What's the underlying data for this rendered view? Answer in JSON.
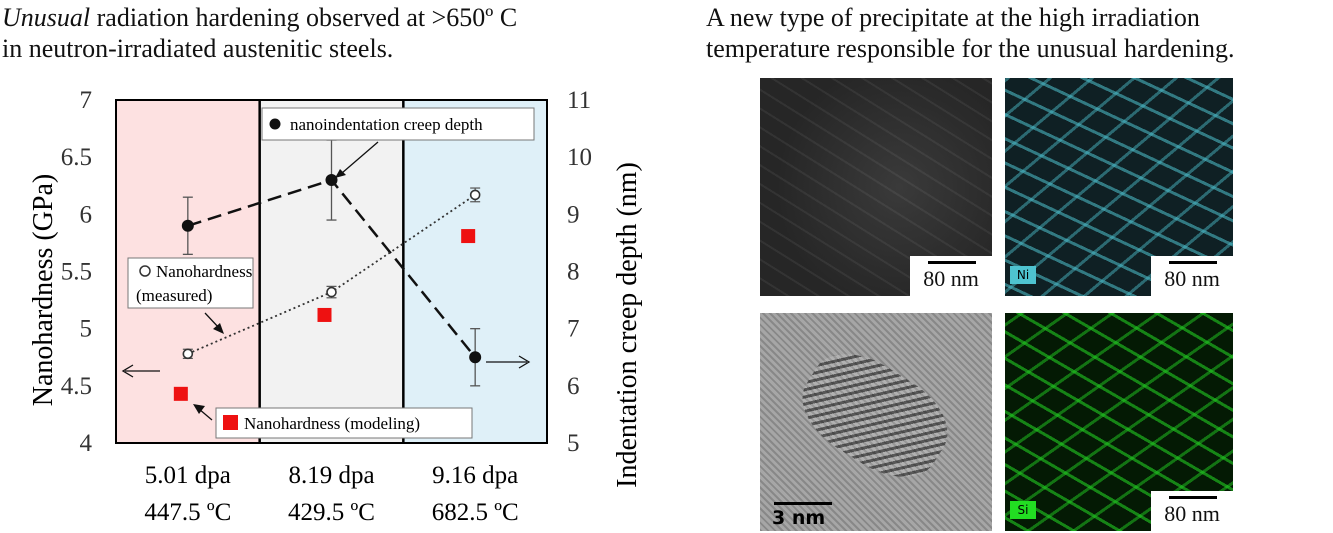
{
  "left_panel": {
    "title_italic": "Unusual",
    "title_line1_rest": " radiation hardening observed at >650º C",
    "title_line2": "in neutron-irradiated austenitic steels."
  },
  "right_panel": {
    "title_line1": "A new type of precipitate at the high irradiation",
    "title_line2": "temperature responsible for the unusual hardening.",
    "images": [
      {
        "scale": "80 nm",
        "tag": ""
      },
      {
        "scale": "80 nm",
        "tag": "Ni",
        "tag_color": "#4ec3d0"
      },
      {
        "scale": "3 nm",
        "tag": ""
      },
      {
        "scale": "80 nm",
        "tag": "Si",
        "tag_color": "#22cc22"
      }
    ]
  },
  "chart_data": {
    "type": "line",
    "regions": [
      {
        "label_line1": "5.01 dpa",
        "label_line2": "447.5 ºC",
        "color": "#fde1e1"
      },
      {
        "label_line1": "8.19 dpa",
        "label_line2": "429.5 ºC",
        "color": "#f2f2f2"
      },
      {
        "label_line1": "9.16 dpa",
        "label_line2": "682.5 ºC",
        "color": "#dff0f8"
      }
    ],
    "ylabel_left": "Nanohardness (GPa)",
    "ylim_left": [
      4,
      7
    ],
    "yticks_left": [
      "4",
      "4.5",
      "5",
      "5.5",
      "6",
      "6.5",
      "7"
    ],
    "ylabel_right": "Indentation creep depth (nm)",
    "ylim_right": [
      5,
      11
    ],
    "yticks_right": [
      "5",
      "6",
      "7",
      "8",
      "9",
      "10",
      "11"
    ],
    "series": [
      {
        "name": "nanoindentation creep depth",
        "axis": "right",
        "marker": "filled-circle",
        "line": "dashed",
        "values": [
          8.8,
          9.6,
          6.5
        ],
        "errors": [
          0.5,
          0.7,
          0.5
        ]
      },
      {
        "name": "Nanohardness (measured)",
        "axis": "left",
        "marker": "open-circle",
        "line": "dotted",
        "values": [
          4.78,
          5.32,
          6.17
        ],
        "errors": [
          0.04,
          0.05,
          0.06
        ]
      },
      {
        "name": "Nanohardness (modeling)",
        "axis": "left",
        "marker": "red-square",
        "line": "none",
        "values": [
          4.43,
          5.12,
          5.81
        ],
        "errors": [
          0,
          0,
          0
        ]
      }
    ],
    "legend_creep": "nanoindentation creep depth",
    "legend_measured_1": "Nanohardness",
    "legend_measured_2": "(measured)",
    "legend_modeling": "Nanohardness (modeling)"
  }
}
